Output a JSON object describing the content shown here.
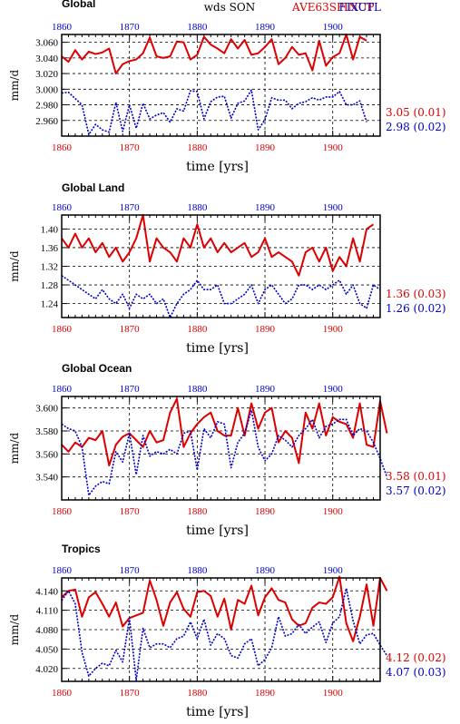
{
  "header": {
    "center": "wds SON",
    "right_red": "AVE63SPINUP",
    "right_blue": "FIXCTL"
  },
  "colors": {
    "red": "#dd0000",
    "blue": "#0000cc"
  },
  "chart_data": [
    {
      "type": "line",
      "title": "Global",
      "ylabel": "mm/d",
      "xlabel": "time [yrs]",
      "ylim": [
        2.94,
        3.07
      ],
      "yticks": [
        3.06,
        3.04,
        3.02,
        3.0,
        2.98,
        2.96
      ],
      "ytick_labels": [
        "3.060",
        "3.040",
        "3.020",
        "3.000",
        "2.980",
        "2.960"
      ],
      "xlim": [
        1860,
        1907
      ],
      "xticks": [
        1860,
        1870,
        1880,
        1890,
        1900
      ],
      "top_tick_labels": [
        "1860",
        "1870",
        "1880",
        "1890",
        "1900"
      ],
      "bottom_tick_labels": [
        "1860",
        "1870",
        "1880",
        "1890",
        "1900"
      ],
      "x_start": 1860,
      "stats": {
        "red": "3.05 (0.01)",
        "blue": "2.98 (0.02)"
      },
      "series": [
        {
          "name": "AVE63SPINUP",
          "color": "#dd0000",
          "style": "solid",
          "values": [
            3.042,
            3.035,
            3.05,
            3.038,
            3.048,
            3.045,
            3.047,
            3.052,
            3.02,
            3.032,
            3.036,
            3.038,
            3.046,
            3.066,
            3.042,
            3.04,
            3.042,
            3.061,
            3.06,
            3.038,
            3.044,
            3.067,
            3.057,
            3.052,
            3.046,
            3.064,
            3.052,
            3.063,
            3.044,
            3.046,
            3.054,
            3.064,
            3.032,
            3.04,
            3.054,
            3.044,
            3.046,
            3.024,
            3.062,
            3.03,
            3.041,
            3.046,
            3.07,
            3.038,
            3.067,
            3.062
          ]
        },
        {
          "name": "FIXCTL",
          "color": "#0000cc",
          "style": "dotted",
          "values": [
            2.995,
            2.996,
            2.988,
            2.98,
            2.942,
            2.955,
            2.948,
            2.945,
            2.983,
            2.946,
            2.98,
            2.95,
            2.982,
            2.962,
            2.967,
            2.97,
            2.958,
            2.975,
            2.972,
            2.998,
            2.997,
            2.962,
            2.984,
            2.99,
            2.991,
            2.963,
            2.982,
            2.985,
            2.999,
            2.948,
            2.961,
            2.989,
            2.986,
            2.986,
            2.975,
            2.982,
            2.984,
            2.989,
            2.986,
            2.99,
            2.99,
            2.997,
            2.98,
            2.98,
            2.985,
            2.958
          ]
        }
      ]
    },
    {
      "type": "line",
      "title": "Global Land",
      "ylabel": "mm/d",
      "xlabel": "time [yrs]",
      "ylim": [
        1.21,
        1.43
      ],
      "yticks": [
        1.4,
        1.36,
        1.32,
        1.28,
        1.24
      ],
      "ytick_labels": [
        "1.40",
        "1.36",
        "1.32",
        "1.28",
        "1.24"
      ],
      "xlim": [
        1860,
        1907
      ],
      "xticks": [
        1860,
        1870,
        1880,
        1890,
        1900
      ],
      "top_tick_labels": [
        "1860",
        "1870",
        "1880",
        "1890",
        "1900"
      ],
      "bottom_tick_labels": [
        "1860",
        "1870",
        "1880",
        "1890",
        "1900"
      ],
      "x_start": 1860,
      "stats": {
        "red": "1.36 (0.03)",
        "blue": "1.26 (0.02)"
      },
      "series": [
        {
          "name": "AVE63SPINUP",
          "color": "#dd0000",
          "style": "solid",
          "values": [
            1.38,
            1.36,
            1.39,
            1.36,
            1.38,
            1.35,
            1.37,
            1.34,
            1.36,
            1.33,
            1.35,
            1.38,
            1.43,
            1.33,
            1.38,
            1.36,
            1.35,
            1.33,
            1.38,
            1.36,
            1.41,
            1.36,
            1.38,
            1.35,
            1.37,
            1.35,
            1.36,
            1.37,
            1.34,
            1.35,
            1.38,
            1.34,
            1.35,
            1.34,
            1.33,
            1.3,
            1.35,
            1.36,
            1.33,
            1.36,
            1.31,
            1.34,
            1.32,
            1.38,
            1.33,
            1.4,
            1.41
          ]
        },
        {
          "name": "FIXCTL",
          "color": "#0000cc",
          "style": "dotted",
          "values": [
            1.3,
            1.29,
            1.28,
            1.27,
            1.26,
            1.25,
            1.27,
            1.25,
            1.24,
            1.26,
            1.23,
            1.26,
            1.25,
            1.26,
            1.24,
            1.25,
            1.21,
            1.24,
            1.26,
            1.27,
            1.29,
            1.27,
            1.27,
            1.28,
            1.24,
            1.24,
            1.25,
            1.26,
            1.28,
            1.24,
            1.27,
            1.28,
            1.26,
            1.24,
            1.25,
            1.28,
            1.28,
            1.27,
            1.28,
            1.27,
            1.28,
            1.29,
            1.26,
            1.28,
            1.24,
            1.23,
            1.28,
            1.27
          ]
        }
      ]
    },
    {
      "type": "line",
      "title": "Global Ocean",
      "ylabel": "mm/d",
      "xlabel": "time [yrs]",
      "ylim": [
        3.52,
        3.61
      ],
      "yticks": [
        3.6,
        3.58,
        3.56,
        3.54
      ],
      "ytick_labels": [
        "3.600",
        "3.580",
        "3.560",
        "3.540"
      ],
      "xlim": [
        1860,
        1907
      ],
      "xticks": [
        1860,
        1870,
        1880,
        1890,
        1900
      ],
      "top_tick_labels": [
        "1860",
        "1870",
        "1880",
        "1890",
        "1900"
      ],
      "bottom_tick_labels": [
        "1860",
        "1870",
        "1880",
        "1890",
        "1900"
      ],
      "x_start": 1860,
      "stats": {
        "red": "3.58 (0.01)",
        "blue": "3.57 (0.02)"
      },
      "series": [
        {
          "name": "AVE63SPINUP",
          "color": "#dd0000",
          "style": "solid",
          "values": [
            3.568,
            3.562,
            3.57,
            3.566,
            3.574,
            3.572,
            3.58,
            3.55,
            3.568,
            3.575,
            3.578,
            3.572,
            3.566,
            3.58,
            3.57,
            3.572,
            3.596,
            3.608,
            3.566,
            3.578,
            3.586,
            3.592,
            3.596,
            3.58,
            3.576,
            3.576,
            3.6,
            3.576,
            3.604,
            3.582,
            3.596,
            3.6,
            3.57,
            3.58,
            3.574,
            3.552,
            3.596,
            3.582,
            3.604,
            3.576,
            3.592,
            3.588,
            3.586,
            3.574,
            3.604,
            3.568,
            3.566,
            3.606,
            3.578
          ]
        },
        {
          "name": "FIXCTL",
          "color": "#0000cc",
          "style": "dotted",
          "values": [
            3.586,
            3.582,
            3.58,
            3.566,
            3.524,
            3.532,
            3.536,
            3.534,
            3.562,
            3.553,
            3.578,
            3.542,
            3.576,
            3.558,
            3.562,
            3.56,
            3.564,
            3.56,
            3.578,
            3.58,
            3.546,
            3.582,
            3.574,
            3.588,
            3.586,
            3.548,
            3.57,
            3.578,
            3.598,
            3.566,
            3.554,
            3.56,
            3.576,
            3.572,
            3.566,
            3.576,
            3.582,
            3.59,
            3.574,
            3.584,
            3.586,
            3.59,
            3.59,
            3.576,
            3.582,
            3.58,
            3.57,
            3.556,
            3.54
          ]
        }
      ]
    },
    {
      "type": "line",
      "title": "Tropics",
      "ylabel": "mm/d",
      "xlabel": "time [yrs]",
      "ylim": [
        4.0,
        4.16
      ],
      "yticks": [
        4.14,
        4.11,
        4.08,
        4.05,
        4.02
      ],
      "ytick_labels": [
        "4.140",
        "4.110",
        "4.080",
        "4.050",
        "4.020"
      ],
      "xlim": [
        1860,
        1907
      ],
      "xticks": [
        1860,
        1870,
        1880,
        1890,
        1900
      ],
      "top_tick_labels": [
        "1860",
        "1870",
        "1880",
        "1890",
        "1900"
      ],
      "bottom_tick_labels": [
        "1860",
        "1870",
        "1880",
        "1890",
        "1900"
      ],
      "x_start": 1860,
      "stats": {
        "red": "4.12 (0.02)",
        "blue": "4.07 (0.03)"
      },
      "series": [
        {
          "name": "AVE63SPINUP",
          "color": "#dd0000",
          "style": "solid",
          "values": [
            4.13,
            4.14,
            4.142,
            4.1,
            4.13,
            4.138,
            4.12,
            4.1,
            4.122,
            4.085,
            4.098,
            4.102,
            4.106,
            4.156,
            4.126,
            4.086,
            4.122,
            4.138,
            4.112,
            4.1,
            4.138,
            4.14,
            4.132,
            4.1,
            4.128,
            4.08,
            4.126,
            4.12,
            4.148,
            4.102,
            4.13,
            4.144,
            4.126,
            4.122,
            4.096,
            4.086,
            4.09,
            4.114,
            4.122,
            4.12,
            4.13,
            4.162,
            4.09,
            4.062,
            4.1,
            4.15,
            4.086,
            4.16,
            4.14
          ]
        },
        {
          "name": "FIXCTL",
          "color": "#0000cc",
          "style": "dotted",
          "values": [
            4.125,
            4.14,
            4.12,
            4.045,
            4.008,
            4.02,
            4.028,
            4.024,
            4.048,
            4.03,
            4.098,
            4.002,
            4.082,
            4.052,
            4.058,
            4.058,
            4.052,
            4.066,
            4.07,
            4.092,
            4.066,
            4.096,
            4.056,
            4.074,
            4.066,
            4.04,
            4.036,
            4.058,
            4.066,
            4.024,
            4.034,
            4.052,
            4.1,
            4.07,
            4.074,
            4.088,
            4.074,
            4.084,
            4.092,
            4.06,
            4.09,
            4.1,
            4.144,
            4.094,
            4.058,
            4.072,
            4.074,
            4.056,
            4.04
          ]
        }
      ]
    }
  ]
}
